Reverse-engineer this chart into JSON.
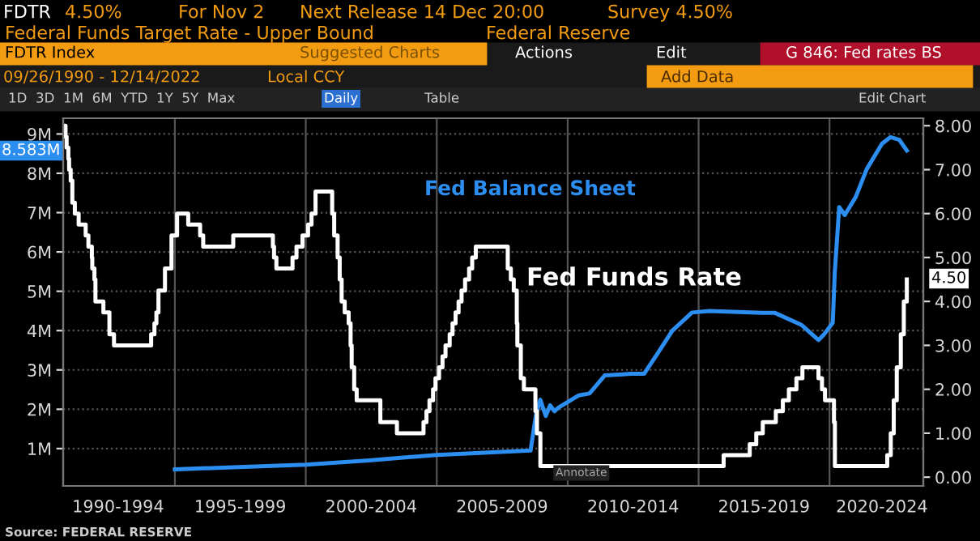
{
  "chart_data": {
    "type": "line",
    "title": "Federal Funds Target Rate - Upper Bound",
    "subtitle": "Federal Reserve",
    "annotations": [
      "Fed Balance Sheet",
      "Fed Funds Rate",
      "Source: FEDERAL RESERVE",
      "8.583M",
      "4.50",
      "FDTR",
      "4.50%",
      "For Nov 2",
      "Next Release 14 Dec 20:00",
      "Survey 4.50%",
      "FDTR Index",
      "G 846: Fed rates BS",
      "09/26/1990 - 12/14/2022",
      "Local CCY",
      "1D  3D  1M  6M  YTD  1Y  5Y  Max",
      "Daily",
      "Table",
      "Actions",
      "Edit",
      "Add Data",
      "Edit Chart",
      "Annotate",
      "Suggested Charts"
    ],
    "xlim": [
      "1990-09-26",
      "2023-08-01"
    ],
    "xticks": [
      {
        "value": "1992-11-01",
        "label": "1990-1994"
      },
      {
        "value": "1995-01-01",
        "label": null
      },
      {
        "value": "1997-07-01",
        "label": "1995-1999"
      },
      {
        "value": "2000-01-01",
        "label": null
      },
      {
        "value": "2002-07-01",
        "label": "2000-2004"
      },
      {
        "value": "2005-01-01",
        "label": null
      },
      {
        "value": "2007-07-01",
        "label": "2005-2009"
      },
      {
        "value": "2010-01-01",
        "label": null
      },
      {
        "value": "2012-07-01",
        "label": "2010-2014"
      },
      {
        "value": "2015-01-01",
        "label": null
      },
      {
        "value": "2017-07-01",
        "label": "2015-2019"
      },
      {
        "value": "2020-01-01",
        "label": null
      },
      {
        "value": "2022-01-01",
        "label": "2020-2024"
      }
    ],
    "ylim": [
      0.05,
      9.4
    ],
    "yticks": [
      {
        "value": 1,
        "label": "1M"
      },
      {
        "value": 2,
        "label": "2M"
      },
      {
        "value": 3,
        "label": "3M"
      },
      {
        "value": 4,
        "label": "4M"
      },
      {
        "value": 5,
        "label": "5M"
      },
      {
        "value": 6,
        "label": "6M"
      },
      {
        "value": 7,
        "label": "7M"
      },
      {
        "value": 8,
        "label": "8M"
      },
      {
        "value": 9,
        "label": "9M"
      }
    ],
    "y2lim": [
      -0.2,
      8.17
    ],
    "y2ticks": [
      {
        "value": 0,
        "label": "0.00"
      },
      {
        "value": 1,
        "label": "1.00"
      },
      {
        "value": 2,
        "label": "2.00"
      },
      {
        "value": 3,
        "label": "3.00"
      },
      {
        "value": 4,
        "label": "4.00"
      },
      {
        "value": 5,
        "label": "5.00"
      },
      {
        "value": 6,
        "label": "6.00"
      },
      {
        "value": 7,
        "label": "7.00"
      },
      {
        "value": 8,
        "label": "8.00"
      }
    ],
    "grid": true,
    "series": [
      {
        "color": "#2b8ef0",
        "x": [
          "1995-01-01",
          "1997-01-01",
          "2000-01-01",
          "2002-06-01",
          "2005-01-01",
          "2008-08-01",
          "2008-10-15",
          "2008-12-15",
          "2009-03-01",
          "2009-05-01",
          "2009-07-01",
          "2009-09-01",
          "2010-06-01",
          "2010-11-01",
          "2011-06-01",
          "2012-06-01",
          "2012-12-01",
          "2013-06-01",
          "2014-01-01",
          "2014-10-01",
          "2015-06-01",
          "2017-06-01",
          "2017-12-01",
          "2018-12-01",
          "2019-08-01",
          "2019-10-15",
          "2020-02-15",
          "2020-03-15",
          "2020-05-15",
          "2020-08-01",
          "2021-01-01",
          "2021-06-01",
          "2022-01-01",
          "2022-05-01",
          "2022-09-01",
          "2022-12-14"
        ],
        "values": [
          0.47,
          0.52,
          0.59,
          0.7,
          0.84,
          0.95,
          1.85,
          2.24,
          1.83,
          2.1,
          1.95,
          2.05,
          2.35,
          2.4,
          2.86,
          2.9,
          2.9,
          3.4,
          4.0,
          4.46,
          4.5,
          4.45,
          4.45,
          4.15,
          3.76,
          3.9,
          4.2,
          5.5,
          7.14,
          6.94,
          7.4,
          8.1,
          8.75,
          8.92,
          8.85,
          8.58
        ]
      },
      {
        "type": "step",
        "axis": "y2",
        "color": "#ffffff",
        "x": [
          "1990-09-26",
          "1990-10-29",
          "1990-11-13",
          "1990-12-07",
          "1990-12-18",
          "1991-01-09",
          "1991-02-01",
          "1991-03-08",
          "1991-04-30",
          "1991-08-06",
          "1991-09-13",
          "1991-10-31",
          "1991-11-06",
          "1991-12-06",
          "1991-12-20",
          "1992-04-09",
          "1992-07-02",
          "1992-09-04",
          "1994-02-04",
          "1994-03-22",
          "1994-04-18",
          "1994-05-17",
          "1994-08-16",
          "1994-11-15",
          "1995-02-01",
          "1995-07-06",
          "1995-12-19",
          "1996-01-31",
          "1997-03-25",
          "1998-09-29",
          "1998-10-15",
          "1998-11-17",
          "1999-06-30",
          "1999-08-24",
          "1999-11-16",
          "2000-02-02",
          "2000-03-21",
          "2000-05-16",
          "2001-01-03",
          "2001-01-31",
          "2001-03-20",
          "2001-04-18",
          "2001-05-15",
          "2001-06-27",
          "2001-08-21",
          "2001-09-17",
          "2001-10-02",
          "2001-11-06",
          "2001-12-11",
          "2002-11-06",
          "2003-06-25",
          "2004-06-30",
          "2004-08-10",
          "2004-09-21",
          "2004-11-10",
          "2004-12-14",
          "2005-02-02",
          "2005-03-22",
          "2005-05-03",
          "2005-06-30",
          "2005-08-09",
          "2005-09-20",
          "2005-11-01",
          "2005-12-13",
          "2006-01-31",
          "2006-03-28",
          "2006-05-10",
          "2006-06-29",
          "2007-09-18",
          "2007-10-31",
          "2007-12-11",
          "2008-01-22",
          "2008-01-30",
          "2008-03-18",
          "2008-04-30",
          "2008-10-08",
          "2008-10-29",
          "2008-12-16",
          "2015-12-16",
          "2016-12-14",
          "2017-03-15",
          "2017-06-14",
          "2017-12-13",
          "2018-03-21",
          "2018-06-13",
          "2018-09-26",
          "2018-12-19",
          "2019-07-31",
          "2019-09-18",
          "2019-10-30",
          "2020-03-03",
          "2020-03-16",
          "2022-03-16",
          "2022-05-04",
          "2022-06-15",
          "2022-07-27",
          "2022-09-21",
          "2022-11-02",
          "2022-12-14"
        ],
        "values": [
          8.0,
          7.75,
          7.5,
          7.25,
          7.0,
          6.75,
          6.25,
          6.0,
          5.75,
          5.5,
          5.25,
          5.0,
          4.75,
          4.5,
          4.0,
          3.75,
          3.25,
          3.0,
          3.25,
          3.5,
          3.75,
          4.25,
          4.75,
          5.5,
          6.0,
          5.75,
          5.5,
          5.25,
          5.5,
          5.25,
          5.0,
          4.75,
          5.0,
          5.25,
          5.5,
          5.75,
          6.0,
          6.5,
          6.0,
          5.5,
          5.0,
          4.5,
          4.0,
          3.75,
          3.5,
          3.0,
          2.5,
          2.0,
          1.75,
          1.25,
          1.0,
          1.25,
          1.5,
          1.75,
          2.0,
          2.25,
          2.5,
          2.75,
          3.0,
          3.25,
          3.5,
          3.75,
          4.0,
          4.25,
          4.5,
          4.75,
          5.0,
          5.25,
          4.75,
          4.5,
          4.25,
          3.5,
          3.0,
          2.25,
          2.0,
          1.5,
          1.0,
          0.25,
          0.5,
          0.75,
          1.0,
          1.25,
          1.5,
          1.75,
          2.0,
          2.25,
          2.5,
          2.25,
          2.0,
          1.75,
          1.25,
          0.25,
          0.5,
          1.0,
          1.75,
          2.5,
          3.25,
          4.0,
          4.5
        ]
      }
    ]
  }
}
